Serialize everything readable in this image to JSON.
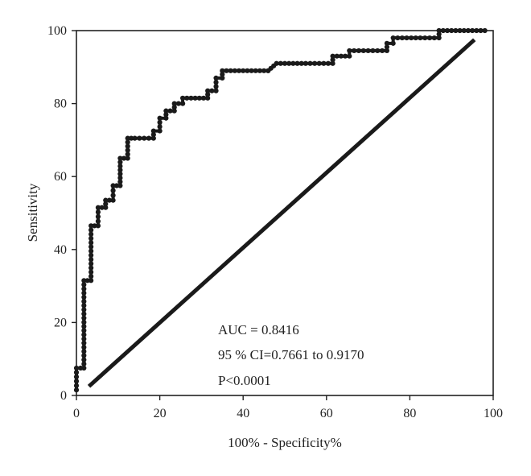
{
  "chart_data": {
    "type": "line",
    "title": "",
    "xlabel": "100% - Specificity%",
    "ylabel": "Sensitivity",
    "xlim": [
      0,
      100
    ],
    "ylim": [
      0,
      100
    ],
    "x_ticks": [
      "0",
      "20",
      "40",
      "60",
      "80",
      "100"
    ],
    "y_ticks": [
      "0",
      "20",
      "40",
      "60",
      "80",
      "100"
    ],
    "grid": false,
    "annotations": [
      "AUC = 0.8416",
      "95 % CI=0.7661 to 0.9170",
      "P<0.0001"
    ],
    "series": [
      {
        "style": "step-with-markers",
        "x": [
          0,
          0,
          1,
          1.8,
          1.8,
          3.5,
          3.5,
          5.2,
          5.2,
          7,
          7,
          8.8,
          8.8,
          10.5,
          10.5,
          12.3,
          12.3,
          14,
          18.5,
          18.5,
          20,
          20,
          21.5,
          21.5,
          23.5,
          23.5,
          25.5,
          25.5,
          29.5,
          31.5,
          31.5,
          33.5,
          33.5,
          35,
          35,
          40,
          46,
          46,
          48,
          55,
          61.5,
          61.5,
          65.5,
          65.5,
          70,
          74.5,
          74.5,
          76,
          76,
          82.5,
          87,
          87,
          91,
          98
        ],
        "y": [
          1.5,
          7.5,
          7.5,
          7.5,
          31.5,
          31.5,
          46.5,
          46.5,
          51.5,
          51.5,
          53.5,
          53.5,
          57.5,
          57.5,
          65,
          65,
          70.5,
          70.5,
          70.5,
          72.5,
          72.5,
          76,
          76,
          78,
          78,
          80,
          80,
          81.5,
          81.5,
          81.5,
          83.5,
          83.5,
          87,
          87,
          89,
          89,
          89,
          89,
          91,
          91,
          91,
          93,
          93,
          94.5,
          94.5,
          94.5,
          96.5,
          96.5,
          98,
          98,
          98,
          100,
          100,
          100
        ]
      },
      {
        "style": "reference-line",
        "x": [
          3,
          95.5
        ],
        "y": [
          2.5,
          97.5
        ]
      }
    ]
  }
}
